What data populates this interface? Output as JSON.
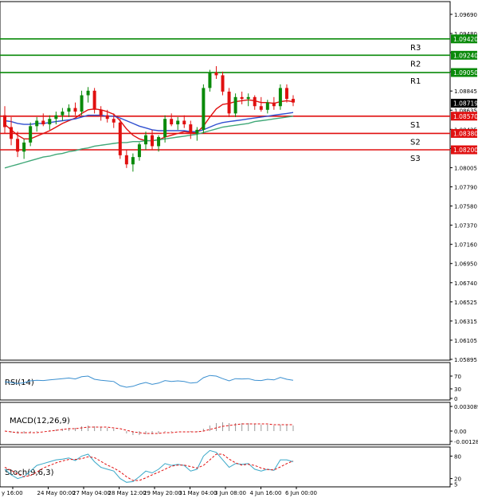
{
  "chart_data": {
    "type": "candlestick",
    "instrument_note": "",
    "price_axis": {
      "min": 1.05895,
      "max": 1.0969,
      "tick_labels": [
        "1.09690",
        "1.09480",
        "1.09265",
        "1.09055",
        "1.08845",
        "1.08635",
        "1.08425",
        "1.08215",
        "1.08005",
        "1.07790",
        "1.07580",
        "1.07370",
        "1.07160",
        "1.06950",
        "1.06740",
        "1.06525",
        "1.06315",
        "1.06105",
        "1.05895"
      ],
      "current_price": "1.08719"
    },
    "time_axis": {
      "labels": [
        "y 16:00",
        "24 May 00:00",
        "27 May 04:00",
        "28 May 12:00",
        "29 May 20:00",
        "31 May 04:00",
        "3 Jun 08:00",
        "4 Jun 16:00",
        "6 Jun 00:00"
      ]
    },
    "levels": [
      {
        "name": "R3",
        "value": 1.0942,
        "label": "1.09420",
        "color": "#0a8a0a"
      },
      {
        "name": "R2",
        "value": 1.0924,
        "label": "1.09240",
        "color": "#0a8a0a"
      },
      {
        "name": "R1",
        "value": 1.0905,
        "label": "1.09050",
        "color": "#0a8a0a"
      },
      {
        "name": "S1",
        "value": 1.0857,
        "label": "1.08570",
        "color": "#e01010"
      },
      {
        "name": "S2",
        "value": 1.0838,
        "label": "1.08380",
        "color": "#e01010"
      },
      {
        "name": "S3",
        "value": 1.082,
        "label": "1.08200",
        "color": "#e01010"
      }
    ],
    "candles": [
      {
        "o": 1.0858,
        "h": 1.0868,
        "l": 1.0838,
        "c": 1.0845
      },
      {
        "o": 1.0845,
        "h": 1.0856,
        "l": 1.0825,
        "c": 1.0832
      },
      {
        "o": 1.0832,
        "h": 1.084,
        "l": 1.0812,
        "c": 1.0818
      },
      {
        "o": 1.0818,
        "h": 1.0832,
        "l": 1.081,
        "c": 1.0828
      },
      {
        "o": 1.0828,
        "h": 1.085,
        "l": 1.0824,
        "c": 1.0846
      },
      {
        "o": 1.0846,
        "h": 1.0856,
        "l": 1.084,
        "c": 1.0852
      },
      {
        "o": 1.0852,
        "h": 1.086,
        "l": 1.0846,
        "c": 1.0848
      },
      {
        "o": 1.0848,
        "h": 1.0858,
        "l": 1.0842,
        "c": 1.0854
      },
      {
        "o": 1.0854,
        "h": 1.0862,
        "l": 1.0848,
        "c": 1.0858
      },
      {
        "o": 1.0858,
        "h": 1.0866,
        "l": 1.0852,
        "c": 1.0862
      },
      {
        "o": 1.0862,
        "h": 1.087,
        "l": 1.0856,
        "c": 1.0866
      },
      {
        "o": 1.0866,
        "h": 1.0872,
        "l": 1.0858,
        "c": 1.0862
      },
      {
        "o": 1.0862,
        "h": 1.0885,
        "l": 1.0858,
        "c": 1.088
      },
      {
        "o": 1.088,
        "h": 1.0889,
        "l": 1.0872,
        "c": 1.0885
      },
      {
        "o": 1.0885,
        "h": 1.0888,
        "l": 1.086,
        "c": 1.0864
      },
      {
        "o": 1.0864,
        "h": 1.0868,
        "l": 1.0852,
        "c": 1.0858
      },
      {
        "o": 1.0858,
        "h": 1.0864,
        "l": 1.085,
        "c": 1.0854
      },
      {
        "o": 1.0854,
        "h": 1.086,
        "l": 1.0844,
        "c": 1.085
      },
      {
        "o": 1.085,
        "h": 1.0854,
        "l": 1.081,
        "c": 1.0814
      },
      {
        "o": 1.0814,
        "h": 1.082,
        "l": 1.08,
        "c": 1.0804
      },
      {
        "o": 1.0804,
        "h": 1.0816,
        "l": 1.0796,
        "c": 1.0812
      },
      {
        "o": 1.0812,
        "h": 1.0828,
        "l": 1.0808,
        "c": 1.0826
      },
      {
        "o": 1.0826,
        "h": 1.084,
        "l": 1.082,
        "c": 1.0836
      },
      {
        "o": 1.0836,
        "h": 1.0842,
        "l": 1.082,
        "c": 1.0824
      },
      {
        "o": 1.0824,
        "h": 1.0836,
        "l": 1.0818,
        "c": 1.0834
      },
      {
        "o": 1.0834,
        "h": 1.0858,
        "l": 1.0828,
        "c": 1.0854
      },
      {
        "o": 1.0854,
        "h": 1.086,
        "l": 1.0846,
        "c": 1.0848
      },
      {
        "o": 1.0848,
        "h": 1.0856,
        "l": 1.0842,
        "c": 1.0852
      },
      {
        "o": 1.0852,
        "h": 1.0858,
        "l": 1.0844,
        "c": 1.0848
      },
      {
        "o": 1.0848,
        "h": 1.0852,
        "l": 1.0832,
        "c": 1.0838
      },
      {
        "o": 1.0838,
        "h": 1.0845,
        "l": 1.083,
        "c": 1.0842
      },
      {
        "o": 1.0842,
        "h": 1.0892,
        "l": 1.0838,
        "c": 1.0888
      },
      {
        "o": 1.0888,
        "h": 1.0908,
        "l": 1.0884,
        "c": 1.0905
      },
      {
        "o": 1.0905,
        "h": 1.0912,
        "l": 1.0898,
        "c": 1.0902
      },
      {
        "o": 1.0902,
        "h": 1.0906,
        "l": 1.088,
        "c": 1.0884
      },
      {
        "o": 1.0884,
        "h": 1.0888,
        "l": 1.0856,
        "c": 1.086
      },
      {
        "o": 1.086,
        "h": 1.0882,
        "l": 1.0856,
        "c": 1.0878
      },
      {
        "o": 1.0878,
        "h": 1.0884,
        "l": 1.087,
        "c": 1.0876
      },
      {
        "o": 1.0876,
        "h": 1.0882,
        "l": 1.0868,
        "c": 1.0878
      },
      {
        "o": 1.0878,
        "h": 1.088,
        "l": 1.0864,
        "c": 1.0868
      },
      {
        "o": 1.0868,
        "h": 1.0878,
        "l": 1.0862,
        "c": 1.0864
      },
      {
        "o": 1.0864,
        "h": 1.0875,
        "l": 1.086,
        "c": 1.0872
      },
      {
        "o": 1.0872,
        "h": 1.0878,
        "l": 1.0864,
        "c": 1.0868
      },
      {
        "o": 1.0868,
        "h": 1.0892,
        "l": 1.0864,
        "c": 1.0888
      },
      {
        "o": 1.0888,
        "h": 1.0892,
        "l": 1.0872,
        "c": 1.0876
      },
      {
        "o": 1.0876,
        "h": 1.088,
        "l": 1.0868,
        "c": 1.0872
      }
    ],
    "moving_averages": [
      {
        "color": "#e01010",
        "values": [
          1.0848,
          1.0842,
          1.0836,
          1.0832,
          1.0832,
          1.0835,
          1.0838,
          1.0841,
          1.0845,
          1.0849,
          1.0852,
          1.0855,
          1.086,
          1.0864,
          1.0865,
          1.0864,
          1.0862,
          1.0859,
          1.0852,
          1.0843,
          1.0836,
          1.0832,
          1.083,
          1.083,
          1.0831,
          1.0834,
          1.0836,
          1.0838,
          1.084,
          1.0839,
          1.0839,
          1.0846,
          1.0856,
          1.0865,
          1.087,
          1.0871,
          1.0873,
          1.0874,
          1.0875,
          1.0874,
          1.0872,
          1.0872,
          1.0871,
          1.0873,
          1.0874,
          1.0873
        ]
      },
      {
        "color": "#3050d0",
        "values": [
          1.0852,
          1.0851,
          1.0849,
          1.0848,
          1.0848,
          1.0849,
          1.0849,
          1.085,
          1.0851,
          1.0852,
          1.0853,
          1.0854,
          1.0856,
          1.0858,
          1.0858,
          1.0858,
          1.0857,
          1.0857,
          1.0855,
          1.0852,
          1.0849,
          1.0846,
          1.0844,
          1.0842,
          1.0841,
          1.0841,
          1.0841,
          1.0841,
          1.0841,
          1.084,
          1.084,
          1.0842,
          1.0845,
          1.0848,
          1.085,
          1.0851,
          1.0852,
          1.0853,
          1.0854,
          1.0855,
          1.0856,
          1.0857,
          1.0858,
          1.0859,
          1.086,
          1.0861
        ]
      },
      {
        "color": "#40a878",
        "values": [
          1.08,
          1.0802,
          1.0804,
          1.0806,
          1.0808,
          1.081,
          1.0812,
          1.0813,
          1.0815,
          1.0816,
          1.0818,
          1.0819,
          1.0821,
          1.0822,
          1.0824,
          1.0825,
          1.0826,
          1.0827,
          1.0828,
          1.0828,
          1.0829,
          1.0829,
          1.083,
          1.083,
          1.0831,
          1.0832,
          1.0833,
          1.0834,
          1.0835,
          1.0836,
          1.0837,
          1.0839,
          1.0841,
          1.0843,
          1.0845,
          1.0846,
          1.0847,
          1.0848,
          1.0849,
          1.0851,
          1.0852,
          1.0853,
          1.0854,
          1.0855,
          1.0856,
          1.0857
        ]
      }
    ],
    "rsi": {
      "label": "RSI(14)",
      "ticks": [
        "70",
        "30",
        "0"
      ],
      "tick_values": [
        70,
        30,
        0
      ],
      "range": [
        0,
        100
      ],
      "color": "#3a8fd0",
      "values": [
        52,
        50,
        47,
        49,
        55,
        57,
        56,
        58,
        60,
        62,
        64,
        61,
        68,
        70,
        60,
        57,
        55,
        53,
        40,
        35,
        38,
        45,
        50,
        44,
        48,
        56,
        53,
        55,
        53,
        48,
        50,
        65,
        72,
        70,
        62,
        55,
        62,
        61,
        62,
        57,
        56,
        60,
        58,
        66,
        60,
        57
      ]
    },
    "macd": {
      "label": "MACD(12,26,9)",
      "ticks": [
        "0.003089",
        "0.00",
        "-0.001288"
      ],
      "tick_values": [
        0.003089,
        0.0,
        -0.001288
      ],
      "range": [
        -0.0015,
        0.0033
      ],
      "hist_color": "#999999",
      "signal_color": "#e01010",
      "histogram": [
        0.0,
        -0.0002,
        -0.0003,
        -0.0003,
        -0.0002,
        -0.0001,
        0.0,
        0.0001,
        0.0002,
        0.0003,
        0.0004,
        0.0004,
        0.0006,
        0.0007,
        0.0006,
        0.0005,
        0.0004,
        0.0003,
        0.0,
        -0.0003,
        -0.0005,
        -0.0005,
        -0.0004,
        -0.0004,
        -0.0003,
        -0.0001,
        -0.0001,
        0.0,
        0.0,
        -0.0001,
        -0.0001,
        0.0003,
        0.0007,
        0.001,
        0.0011,
        0.001,
        0.001,
        0.001,
        0.001,
        0.0009,
        0.0008,
        0.0008,
        0.0007,
        0.0008,
        0.0008,
        0.0007
      ],
      "signal": [
        0.0,
        -0.0001,
        -0.0002,
        -0.0002,
        -0.0002,
        -0.0002,
        -0.0001,
        0.0,
        0.0001,
        0.0002,
        0.0003,
        0.0003,
        0.0004,
        0.0005,
        0.0005,
        0.0005,
        0.0005,
        0.0004,
        0.0003,
        0.0001,
        -0.0001,
        -0.0002,
        -0.0003,
        -0.0003,
        -0.0003,
        -0.0002,
        -0.0002,
        -0.0001,
        -0.0001,
        -0.0001,
        -0.0001,
        0.0,
        0.0002,
        0.0004,
        0.0006,
        0.0007,
        0.0008,
        0.0009,
        0.0009,
        0.0009,
        0.0009,
        0.0009,
        0.0008,
        0.0008,
        0.0008,
        0.0008
      ]
    },
    "stoch": {
      "label": "Stoch(9,6,3)",
      "ticks": [
        "80",
        "20",
        "5"
      ],
      "tick_values": [
        80,
        20,
        5
      ],
      "range": [
        0,
        100
      ],
      "main_color": "#3aa8c8",
      "signal_color": "#e01010",
      "main": [
        45,
        30,
        20,
        25,
        40,
        55,
        60,
        65,
        70,
        72,
        75,
        68,
        80,
        85,
        65,
        50,
        45,
        40,
        20,
        10,
        12,
        25,
        40,
        35,
        45,
        60,
        55,
        58,
        55,
        40,
        45,
        80,
        95,
        90,
        70,
        50,
        60,
        58,
        60,
        45,
        40,
        45,
        42,
        70,
        70,
        65
      ],
      "signal": [
        50,
        42,
        32,
        25,
        28,
        37,
        48,
        55,
        62,
        67,
        71,
        71,
        73,
        78,
        76,
        66,
        56,
        48,
        38,
        25,
        15,
        15,
        22,
        30,
        37,
        45,
        53,
        56,
        56,
        52,
        48,
        55,
        70,
        85,
        85,
        72,
        62,
        56,
        58,
        55,
        48,
        44,
        43,
        51,
        60,
        67
      ]
    }
  }
}
